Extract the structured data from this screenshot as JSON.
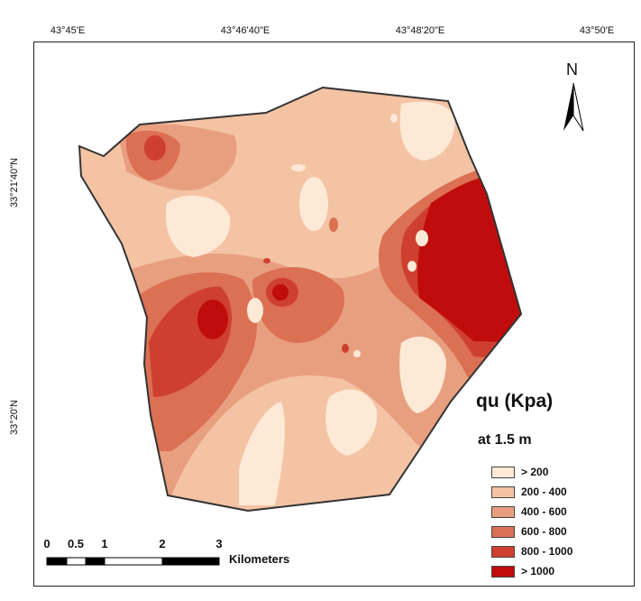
{
  "map": {
    "longitude_ticks": [
      "43°45'E",
      "43°46'40\"E",
      "43°48'20\"E",
      "43°50'E"
    ],
    "latitude_ticks": [
      "33°21'40\"N",
      "33°20'N"
    ]
  },
  "legend": {
    "title": "qu (Kpa)",
    "subtitle": "at 1.5 m",
    "classes": [
      {
        "label": "> 200",
        "color": "#fde9d5"
      },
      {
        "label": "200 - 400",
        "color": "#f3c3a4"
      },
      {
        "label": "400 - 600",
        "color": "#e89f80"
      },
      {
        "label": "600 - 800",
        "color": "#db7053"
      },
      {
        "label": "800 - 1000",
        "color": "#cf3f30"
      },
      {
        "label": "> 1000",
        "color": "#c00c0c"
      }
    ]
  },
  "north_arrow": {
    "label": "N"
  },
  "scale_bar": {
    "ticks": [
      "0",
      "0.5",
      "1",
      "2",
      "3"
    ],
    "unit": "Kilometers"
  }
}
